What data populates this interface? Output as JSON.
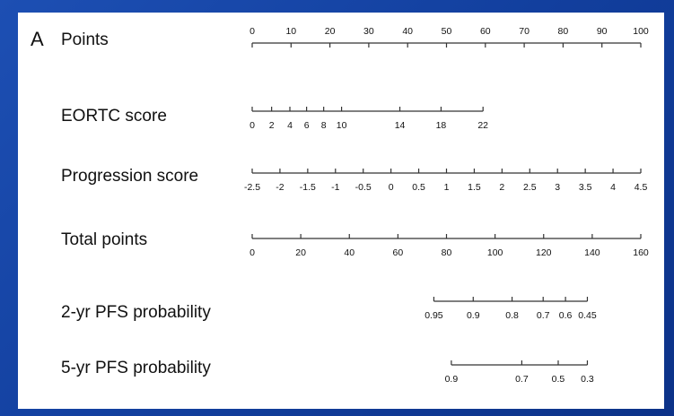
{
  "chart_data": {
    "type": "nomogram",
    "panel_label": "A",
    "scales": [
      {
        "name": "Points",
        "xlim": [
          0,
          100
        ],
        "ticks": [
          0,
          10,
          20,
          30,
          40,
          50,
          60,
          70,
          80,
          90,
          100
        ]
      },
      {
        "name": "EORTC score",
        "xlim": [
          0,
          100
        ],
        "ticks": [
          {
            "value": 0,
            "label": "0"
          },
          {
            "value": 5,
            "label": "2"
          },
          {
            "value": 9.7,
            "label": "4"
          },
          {
            "value": 14,
            "label": "6"
          },
          {
            "value": 18.4,
            "label": "8"
          },
          {
            "value": 23,
            "label": "10"
          },
          {
            "value": 38,
            "label": "14"
          },
          {
            "value": 48.6,
            "label": "18"
          },
          {
            "value": 59.4,
            "label": "22"
          }
        ]
      },
      {
        "name": "Progression score",
        "xlim": [
          -2.5,
          4.5
        ],
        "ticks": [
          {
            "value": -2.5,
            "label": "-2.5"
          },
          {
            "value": -2,
            "label": "-2"
          },
          {
            "value": -1.5,
            "label": "-1.5"
          },
          {
            "value": -1,
            "label": "-1"
          },
          {
            "value": -0.5,
            "label": "-0.5"
          },
          0,
          0.5,
          1,
          1.5,
          2,
          2.5,
          3,
          3.5,
          4,
          4.5
        ]
      },
      {
        "name": "Total points",
        "xlim": [
          0,
          160
        ],
        "ticks": [
          0,
          20,
          40,
          60,
          80,
          100,
          120,
          140,
          160
        ]
      },
      {
        "name": "2-yr PFS probability",
        "xlim": [
          0,
          160
        ],
        "ticks": [
          {
            "value": 74.8,
            "label": "0.95"
          },
          {
            "value": 91,
            "label": "0.9"
          },
          {
            "value": 107,
            "label": "0.8"
          },
          {
            "value": 119.8,
            "label": "0.7"
          },
          {
            "value": 129,
            "label": "0.6"
          },
          {
            "value": 138,
            "label": "0.45"
          }
        ]
      },
      {
        "name": "5-yr PFS probability",
        "xlim": [
          0,
          160
        ],
        "ticks": [
          {
            "value": 82,
            "label": "0.9"
          },
          {
            "value": 111,
            "label": "0.7"
          },
          {
            "value": 126,
            "label": "0.5"
          },
          {
            "value": 138,
            "label": "0.3"
          }
        ]
      }
    ]
  }
}
